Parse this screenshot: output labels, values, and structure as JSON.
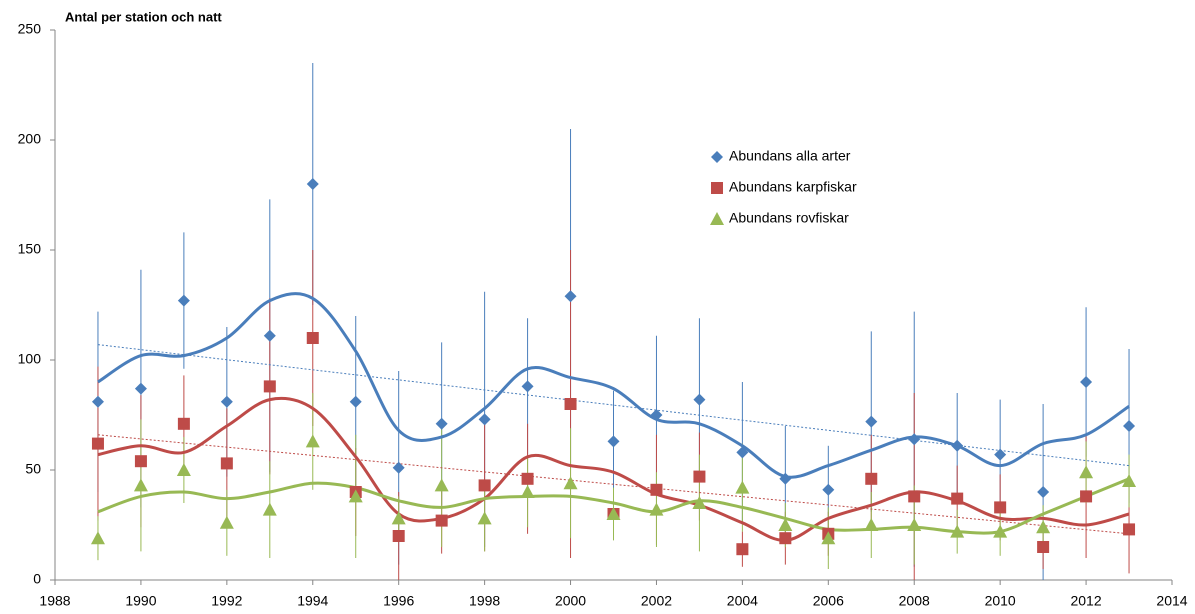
{
  "chart_data": {
    "type": "errorbar-line",
    "title": "Antal per station och natt",
    "x": [
      1989,
      1990,
      1991,
      1992,
      1993,
      1994,
      1995,
      1996,
      1997,
      1998,
      1999,
      2000,
      2001,
      2002,
      2003,
      2004,
      2005,
      2006,
      2007,
      2008,
      2009,
      2010,
      2011,
      2012,
      2013
    ],
    "xlim": [
      1988,
      2014
    ],
    "xticks": [
      1988,
      1990,
      1992,
      1994,
      1996,
      1998,
      2000,
      2002,
      2004,
      2006,
      2008,
      2010,
      2012,
      2014
    ],
    "ylim": [
      0,
      250
    ],
    "yticks": [
      0,
      50,
      100,
      150,
      200,
      250
    ],
    "legend": "center-right",
    "series": [
      {
        "name": "Abundans alla arter",
        "color": "#4a7ebb",
        "marker": "diamond",
        "values": [
          81,
          87,
          127,
          81,
          111,
          180,
          81,
          51,
          71,
          73,
          88,
          129,
          63,
          75,
          82,
          58,
          46,
          41,
          72,
          64,
          61,
          57,
          40,
          90,
          70
        ],
        "errors": [
          41,
          54,
          31,
          34,
          62,
          55,
          39,
          44,
          37,
          58,
          31,
          76,
          23,
          36,
          37,
          32,
          24,
          20,
          41,
          58,
          24,
          25,
          40,
          34,
          35
        ],
        "smooth": [
          90,
          102,
          102,
          110,
          127,
          128,
          104,
          68,
          65,
          78,
          96,
          92,
          87,
          73,
          71,
          61,
          47,
          52,
          59,
          65,
          61,
          52,
          62,
          66,
          79
        ],
        "trend": [
          107,
          52
        ]
      },
      {
        "name": "Abundans karpfiskar",
        "color": "#be4b48",
        "marker": "square",
        "values": [
          62,
          54,
          71,
          53,
          88,
          110,
          40,
          20,
          27,
          43,
          46,
          80,
          30,
          41,
          47,
          14,
          19,
          21,
          46,
          38,
          37,
          33,
          15,
          38,
          23
        ],
        "errors": [
          35,
          30,
          22,
          25,
          40,
          40,
          20,
          20,
          15,
          30,
          25,
          70,
          10,
          25,
          20,
          8,
          12,
          10,
          20,
          47,
          15,
          15,
          10,
          28,
          20
        ],
        "smooth": [
          57,
          61,
          58,
          70,
          82,
          78,
          56,
          30,
          28,
          37,
          56,
          52,
          49,
          39,
          34,
          26,
          18,
          28,
          34,
          40,
          36,
          28,
          28,
          25,
          30
        ],
        "trend": [
          66,
          21
        ]
      },
      {
        "name": "Abundans rovfiskar",
        "color": "#98b954",
        "marker": "triangle",
        "values": [
          19,
          43,
          50,
          26,
          32,
          63,
          38,
          28,
          43,
          28,
          40,
          44,
          30,
          32,
          35,
          42,
          25,
          19,
          25,
          25,
          22,
          22,
          24,
          49,
          45
        ],
        "errors": [
          10,
          30,
          15,
          15,
          22,
          22,
          28,
          10,
          28,
          15,
          16,
          25,
          12,
          17,
          22,
          20,
          10,
          14,
          15,
          18,
          10,
          11,
          10,
          14,
          12
        ],
        "smooth": [
          31,
          38,
          40,
          37,
          40,
          44,
          42,
          36,
          33,
          37,
          38,
          38,
          35,
          31,
          36,
          33,
          28,
          23,
          23,
          24,
          22,
          22,
          30,
          38,
          46
        ]
      }
    ]
  }
}
